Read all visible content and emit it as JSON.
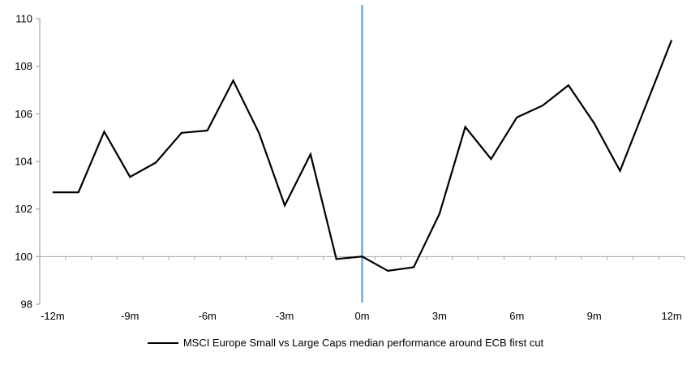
{
  "chart_data": {
    "type": "line",
    "title": "",
    "legend": "MSCI Europe Small vs Large Caps median performance around ECB first cut",
    "x": [
      -12,
      -11,
      -10,
      -9,
      -8,
      -7,
      -6,
      -5,
      -4,
      -3,
      -2,
      -1,
      0,
      1,
      2,
      3,
      4,
      5,
      6,
      7,
      8,
      9,
      10,
      11,
      12
    ],
    "x_unit": "m",
    "series": [
      {
        "name": "MSCI Europe Small vs Large Caps median performance around ECB first cut",
        "values": [
          102.7,
          102.7,
          105.25,
          103.35,
          103.95,
          105.2,
          105.3,
          107.4,
          105.2,
          102.15,
          104.3,
          99.9,
          100.0,
          99.4,
          99.55,
          101.8,
          105.45,
          104.1,
          105.85,
          106.35,
          107.2,
          105.6,
          103.6,
          106.35,
          109.1
        ]
      }
    ],
    "y_ticks": [
      98,
      100,
      102,
      104,
      106,
      108,
      110
    ],
    "ylim": [
      98,
      110
    ],
    "baseline_value": 100,
    "x_tick_months": [
      -12,
      -9,
      -6,
      -3,
      0,
      3,
      6,
      9,
      12
    ],
    "x_tick_labels": [
      "-12m",
      "-9m",
      "-6m",
      "-3m",
      "0m",
      "3m",
      "6m",
      "9m",
      "12m"
    ],
    "event_line_month": 0,
    "legend_position": "bottom-center",
    "grid": "baseline-only",
    "colors": {
      "series": "#000000",
      "event_line": "#74A9D6",
      "axis": "#A6A6A6",
      "text": "#000000",
      "background": "#FFFFFF"
    }
  }
}
